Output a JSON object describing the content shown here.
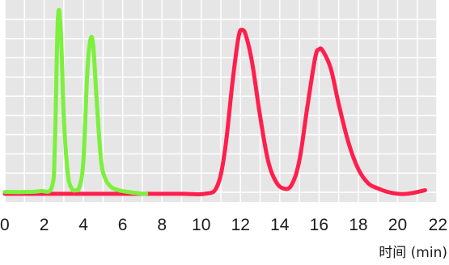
{
  "chart_data": {
    "type": "line",
    "title": "",
    "xlabel": "时间 (min)",
    "ylabel": "",
    "xlim": [
      0,
      22
    ],
    "x_ticks": [
      0,
      2,
      4,
      6,
      8,
      10,
      12,
      14,
      16,
      18,
      20,
      22
    ],
    "grid": true,
    "background_color": "#e6e6e6",
    "grid_color": "#ffffff",
    "series": [
      {
        "color": "#7cf03c",
        "x": [
          0,
          1.0,
          1.8,
          2.4,
          2.55,
          2.7,
          2.85,
          3.0,
          3.2,
          3.4,
          3.6,
          3.8,
          4.0,
          4.2,
          4.35,
          4.5,
          4.7,
          4.9,
          5.1,
          5.4,
          5.8,
          6.3,
          7.0,
          7.2
        ],
        "y": [
          0.02,
          0.02,
          0.025,
          0.05,
          0.3,
          1.0,
          0.93,
          0.45,
          0.13,
          0.04,
          0.03,
          0.05,
          0.2,
          0.7,
          0.88,
          0.85,
          0.5,
          0.2,
          0.1,
          0.05,
          0.03,
          0.02,
          0.01,
          0.01
        ]
      },
      {
        "color": "#ff1f4c",
        "x": [
          0,
          1,
          3,
          5,
          7,
          9,
          10.2,
          10.8,
          11.2,
          11.6,
          11.9,
          12.1,
          12.3,
          12.6,
          13.0,
          13.4,
          13.8,
          14.2,
          14.6,
          15.0,
          15.4,
          15.8,
          16.0,
          16.2,
          16.6,
          17.0,
          17.5,
          18.0,
          18.5,
          19.0,
          19.5,
          20.0,
          20.5,
          21.0,
          21.4
        ],
        "y": [
          0.01,
          0.01,
          0.01,
          0.01,
          0.01,
          0.01,
          0.01,
          0.05,
          0.25,
          0.65,
          0.9,
          0.94,
          0.9,
          0.75,
          0.45,
          0.2,
          0.08,
          0.04,
          0.06,
          0.2,
          0.5,
          0.78,
          0.83,
          0.82,
          0.72,
          0.52,
          0.3,
          0.15,
          0.07,
          0.04,
          0.02,
          0.01,
          0.01,
          0.02,
          0.03
        ]
      }
    ]
  }
}
